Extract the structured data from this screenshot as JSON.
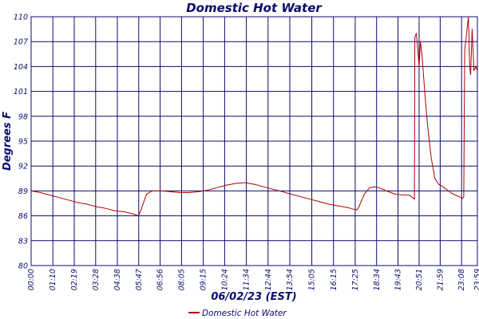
{
  "chart_data": {
    "type": "line",
    "title": "Domestic Hot Water",
    "xlabel": "06/02/23 (EST)",
    "ylabel": "Degrees F",
    "ylim": [
      80,
      110
    ],
    "yticks": [
      80,
      83,
      86,
      89,
      92,
      95,
      98,
      101,
      104,
      107,
      110
    ],
    "y_tick_labels": [
      "80",
      "83",
      "86",
      "89",
      "92",
      "95",
      "98",
      "101",
      "104",
      "107",
      "110"
    ],
    "x_tick_labels": [
      "00:00",
      "01:10",
      "02:19",
      "03:28",
      "04:38",
      "05:47",
      "06:56",
      "08:05",
      "09:15",
      "10:24",
      "11:34",
      "12:44",
      "13:54",
      "15:05",
      "16:15",
      "17:25",
      "18:34",
      "19:43",
      "20:51",
      "21:59",
      "23:08",
      "23:59"
    ],
    "x_tick_hours": [
      0,
      1.1667,
      2.3167,
      3.4667,
      4.6333,
      5.7833,
      6.9333,
      8.0833,
      9.25,
      10.4,
      11.5667,
      12.7333,
      13.9,
      15.0833,
      16.25,
      17.4167,
      18.5667,
      19.7167,
      20.85,
      21.9833,
      23.1333,
      23.9833
    ],
    "grid": true,
    "legend_position": "bottom-center",
    "line_color": "#b00000",
    "grid_color": "#0c0c6e",
    "series": [
      {
        "name": "Domestic Hot Water",
        "x_hours": [
          0,
          0.5,
          1.0,
          1.5,
          2.0,
          2.5,
          3.0,
          3.5,
          4.0,
          4.5,
          5.0,
          5.5,
          5.78,
          5.95,
          6.2,
          6.5,
          7.0,
          7.5,
          8.0,
          8.5,
          9.0,
          9.5,
          10.0,
          10.5,
          11.0,
          11.5,
          12.0,
          12.5,
          13.0,
          13.5,
          14.0,
          14.5,
          15.0,
          15.5,
          16.0,
          16.5,
          17.0,
          17.5,
          17.6,
          17.9,
          18.2,
          18.5,
          18.8,
          19.2,
          19.6,
          20.0,
          20.3,
          20.45,
          20.6,
          20.62,
          20.7,
          20.78,
          20.85,
          20.92,
          21.0,
          21.15,
          21.3,
          21.5,
          21.7,
          21.9,
          22.2,
          22.6,
          23.0,
          23.2,
          23.25,
          23.3,
          23.38,
          23.45,
          23.5,
          23.57,
          23.62,
          23.7,
          23.8,
          23.9,
          23.98
        ],
        "values": [
          89.0,
          88.8,
          88.5,
          88.2,
          87.9,
          87.6,
          87.4,
          87.1,
          86.9,
          86.6,
          86.5,
          86.2,
          86.0,
          87.0,
          88.6,
          89.0,
          89.0,
          88.9,
          88.8,
          88.8,
          88.9,
          89.1,
          89.4,
          89.7,
          89.9,
          90.0,
          89.8,
          89.5,
          89.2,
          88.9,
          88.6,
          88.3,
          88.0,
          87.7,
          87.4,
          87.2,
          87.0,
          86.7,
          87.0,
          88.6,
          89.4,
          89.5,
          89.3,
          88.9,
          88.6,
          88.5,
          88.5,
          88.3,
          88.0,
          107.5,
          108.0,
          106.0,
          104.0,
          107.0,
          105.5,
          101.0,
          97.0,
          93.0,
          90.5,
          89.8,
          89.4,
          88.7,
          88.3,
          88.1,
          88.3,
          106.0,
          107.5,
          109.0,
          110.0,
          104.0,
          103.0,
          108.5,
          103.5,
          104.0,
          103.5
        ]
      }
    ]
  }
}
